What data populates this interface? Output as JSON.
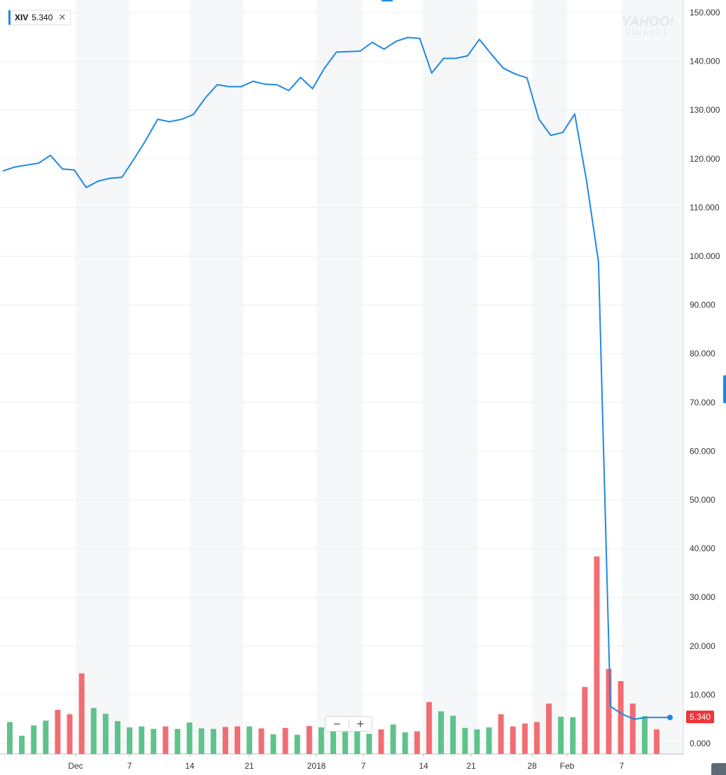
{
  "ticker": {
    "symbol": "XIV",
    "value": "5.340",
    "close_icon": "close-icon"
  },
  "watermark": {
    "line1": "YAHOO!",
    "line2": "FINANCE"
  },
  "zoom": {
    "minus": "−",
    "plus": "+"
  },
  "last_price_label": "5.340",
  "colors": {
    "line": "#1e88e5",
    "up_volume": "#5ec38a",
    "down_volume": "#f26d72",
    "last_badge": "#f0353b"
  },
  "chart_data": {
    "type": "line",
    "title": "",
    "xlabel": "",
    "ylabel": "",
    "ylim": [
      0,
      150
    ],
    "y_ticks": [
      "150.000",
      "140.000",
      "130.000",
      "120.000",
      "110.000",
      "100.000",
      "90.000",
      "80.000",
      "70.000",
      "60.000",
      "50.000",
      "40.000",
      "30.000",
      "20.000",
      "10.000",
      "0.000"
    ],
    "x_ticks": [
      "Dec",
      "7",
      "14",
      "21",
      "2018",
      "7",
      "14",
      "21",
      "28",
      "Feb",
      "7"
    ],
    "grid": true,
    "series": [
      {
        "values": [
          117.5,
          118.3,
          118.7,
          119.1,
          120.7,
          117.9,
          117.7,
          114.1,
          115.4,
          116.0,
          116.2,
          119.9,
          123.8,
          128.1,
          127.6,
          128.1,
          129.1,
          132.5,
          135.2,
          134.8,
          134.8,
          135.9,
          135.3,
          135.2,
          134.0,
          136.7,
          134.4,
          138.6,
          141.9,
          142.0,
          142.1,
          143.9,
          142.5,
          144.1,
          144.9,
          144.7,
          137.6,
          140.6,
          140.6,
          141.1,
          144.5,
          141.5,
          138.6,
          137.4,
          136.6,
          128.1,
          124.8,
          125.4,
          129.2,
          115.4,
          98.8,
          7.6,
          6.0,
          5.0,
          5.34,
          5.34,
          5.34
        ]
      }
    ],
    "volume": [
      {
        "v": 4.4,
        "dir": "up"
      },
      {
        "v": 1.6,
        "dir": "up"
      },
      {
        "v": 3.7,
        "dir": "up"
      },
      {
        "v": 4.7,
        "dir": "up"
      },
      {
        "v": 6.9,
        "dir": "down"
      },
      {
        "v": 6.0,
        "dir": "down"
      },
      {
        "v": 14.4,
        "dir": "down"
      },
      {
        "v": 7.3,
        "dir": "up"
      },
      {
        "v": 6.1,
        "dir": "up"
      },
      {
        "v": 4.6,
        "dir": "up"
      },
      {
        "v": 3.3,
        "dir": "up"
      },
      {
        "v": 3.5,
        "dir": "up"
      },
      {
        "v": 3.0,
        "dir": "up"
      },
      {
        "v": 3.5,
        "dir": "down"
      },
      {
        "v": 3.0,
        "dir": "up"
      },
      {
        "v": 4.3,
        "dir": "up"
      },
      {
        "v": 3.1,
        "dir": "up"
      },
      {
        "v": 3.0,
        "dir": "up"
      },
      {
        "v": 3.4,
        "dir": "down"
      },
      {
        "v": 3.5,
        "dir": "down"
      },
      {
        "v": 3.5,
        "dir": "up"
      },
      {
        "v": 3.1,
        "dir": "down"
      },
      {
        "v": 1.9,
        "dir": "up"
      },
      {
        "v": 3.2,
        "dir": "down"
      },
      {
        "v": 1.8,
        "dir": "up"
      },
      {
        "v": 3.6,
        "dir": "down"
      },
      {
        "v": 3.3,
        "dir": "up"
      },
      {
        "v": 2.7,
        "dir": "up"
      },
      {
        "v": 2.4,
        "dir": "up"
      },
      {
        "v": 2.6,
        "dir": "up"
      },
      {
        "v": 2.0,
        "dir": "up"
      },
      {
        "v": 2.9,
        "dir": "down"
      },
      {
        "v": 3.9,
        "dir": "up"
      },
      {
        "v": 2.3,
        "dir": "up"
      },
      {
        "v": 2.5,
        "dir": "down"
      },
      {
        "v": 8.5,
        "dir": "down"
      },
      {
        "v": 6.6,
        "dir": "up"
      },
      {
        "v": 5.7,
        "dir": "up"
      },
      {
        "v": 3.2,
        "dir": "up"
      },
      {
        "v": 2.9,
        "dir": "up"
      },
      {
        "v": 3.3,
        "dir": "up"
      },
      {
        "v": 6.0,
        "dir": "down"
      },
      {
        "v": 3.5,
        "dir": "down"
      },
      {
        "v": 4.1,
        "dir": "down"
      },
      {
        "v": 4.4,
        "dir": "down"
      },
      {
        "v": 8.2,
        "dir": "down"
      },
      {
        "v": 5.5,
        "dir": "up"
      },
      {
        "v": 5.4,
        "dir": "up"
      },
      {
        "v": 11.6,
        "dir": "down"
      },
      {
        "v": 38.4,
        "dir": "down"
      },
      {
        "v": 15.3,
        "dir": "down"
      },
      {
        "v": 12.8,
        "dir": "down"
      },
      {
        "v": 8.2,
        "dir": "down"
      },
      {
        "v": 5.6,
        "dir": "up"
      },
      {
        "v": 2.9,
        "dir": "down"
      }
    ]
  }
}
